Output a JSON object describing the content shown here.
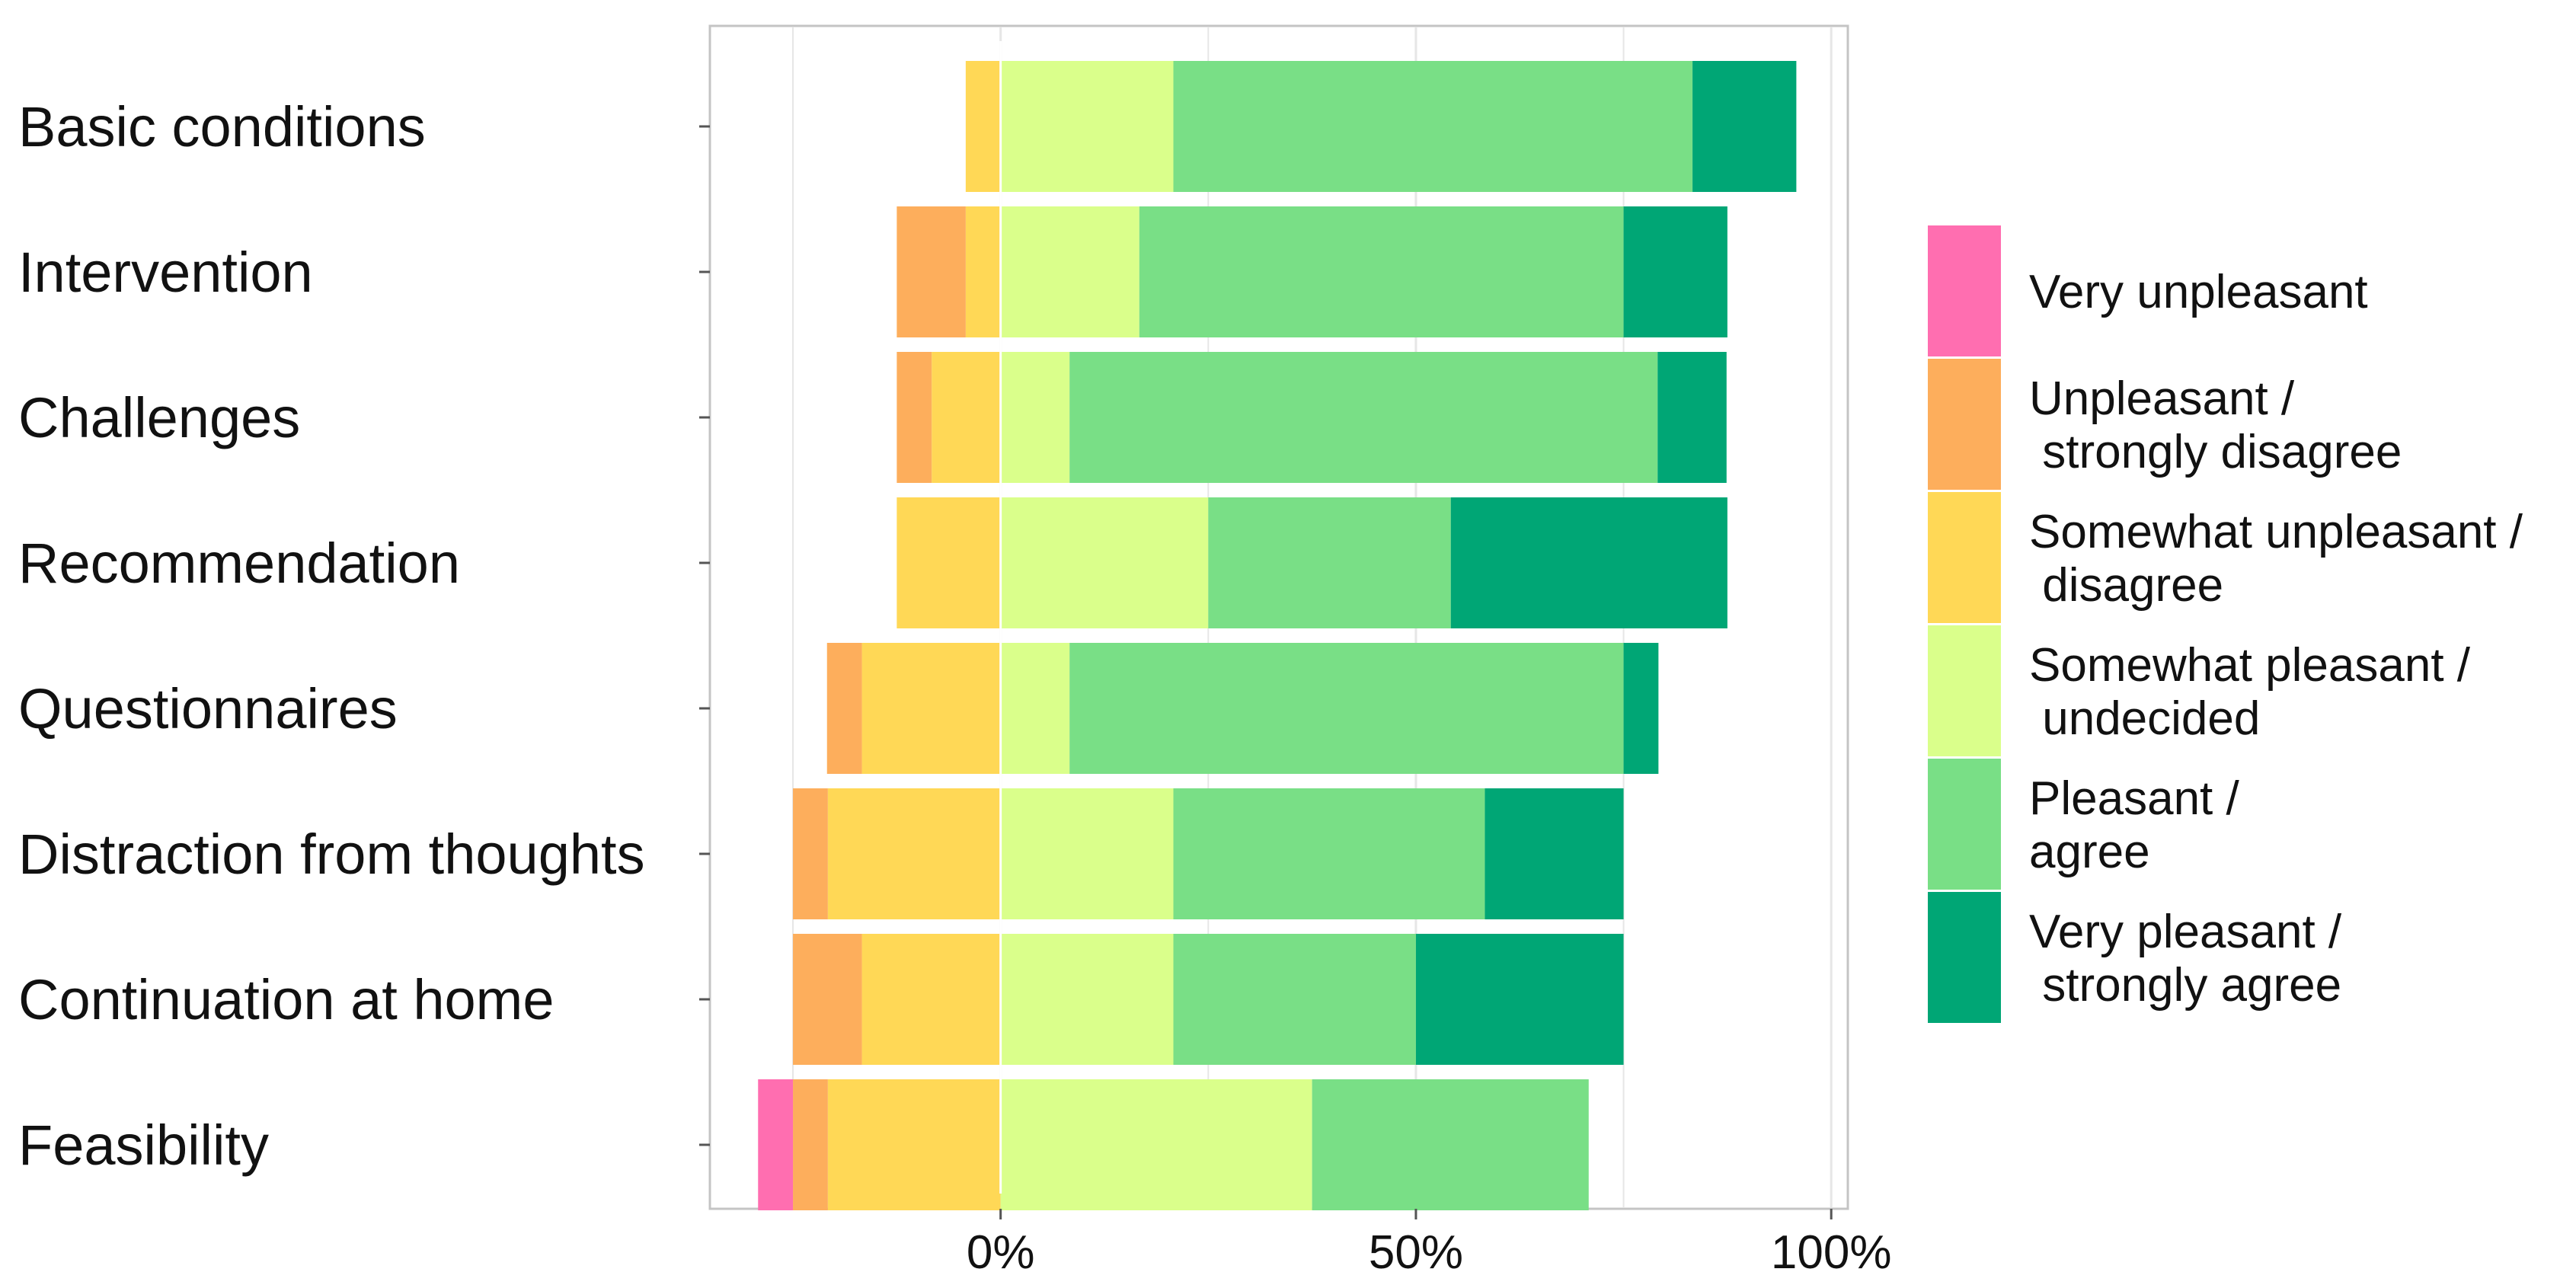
{
  "chart_data": {
    "type": "bar",
    "orientation": "horizontal",
    "stacked": "diverging",
    "title": "",
    "xlabel": "",
    "ylabel": "",
    "xlim": [
      -35,
      102
    ],
    "xticks": [
      0,
      50,
      100
    ],
    "xtick_labels": [
      "0%",
      "50%",
      "100%"
    ],
    "grid": true,
    "legend_position": "right",
    "categories": [
      "Basic conditions",
      "Intervention",
      "Challenges",
      "Recommendation",
      "Questionnaires",
      "Distraction from thoughts",
      "Continuation at home",
      "Feasibility"
    ],
    "series": [
      {
        "name": "Very unpleasant",
        "legend_lines": [
          "Very unpleasant"
        ],
        "color": "#FF6EB0",
        "side": "negative",
        "values": [
          0,
          0,
          0,
          0,
          0,
          0,
          0,
          4.2
        ]
      },
      {
        "name": "Unpleasant / strongly disagree",
        "legend_lines": [
          "Unpleasant /",
          " strongly disagree"
        ],
        "color": "#FDAE5C",
        "side": "negative",
        "values": [
          0,
          8.3,
          4.2,
          0,
          4.2,
          4.2,
          8.3,
          4.2
        ]
      },
      {
        "name": "Somewhat unpleasant / disagree",
        "legend_lines": [
          "Somewhat unpleasant /",
          " disagree"
        ],
        "color": "#FFD856",
        "side": "negative",
        "values": [
          4.2,
          4.2,
          8.3,
          12.5,
          16.7,
          20.8,
          16.7,
          20.8
        ]
      },
      {
        "name": "Somewhat pleasant / undecided",
        "legend_lines": [
          "Somewhat pleasant /",
          " undecided"
        ],
        "color": "#DAFF8B",
        "side": "positive",
        "values": [
          20.8,
          16.7,
          8.3,
          25.0,
          8.3,
          20.8,
          20.8,
          37.5
        ]
      },
      {
        "name": "Pleasant / agree",
        "legend_lines": [
          "Pleasant /",
          "agree"
        ],
        "color": "#79DF86",
        "side": "positive",
        "values": [
          62.5,
          58.3,
          70.8,
          29.2,
          66.7,
          37.5,
          29.2,
          33.3
        ]
      },
      {
        "name": "Very pleasant / strongly agree",
        "legend_lines": [
          "Very pleasant /",
          " strongly agree"
        ],
        "color": "#00A675",
        "side": "positive",
        "values": [
          12.5,
          12.5,
          8.3,
          33.3,
          4.2,
          16.7,
          25.0,
          0
        ]
      }
    ]
  }
}
